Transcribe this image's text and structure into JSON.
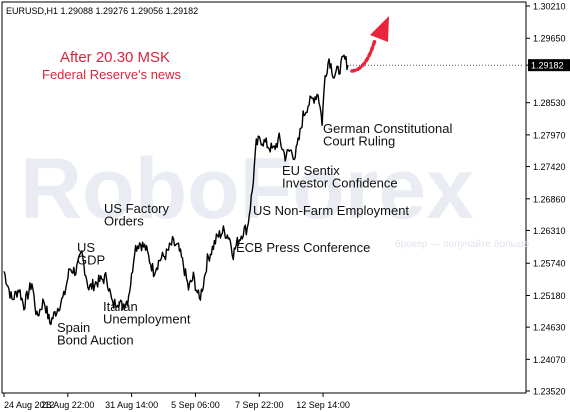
{
  "chart_data": {
    "type": "line",
    "header": {
      "symbol": "EURUSD,H1",
      "ohlc": "1.29088 1.29276 1.29056 1.29182"
    },
    "watermark": "RoboForex",
    "watermark_tag": "брокер — получайте больше",
    "y_ticks": [
      "1.30210",
      "1.29650",
      "1.29182",
      "1.28530",
      "1.27970",
      "1.27420",
      "1.26860",
      "1.26310",
      "1.25740",
      "1.25180",
      "1.24630",
      "1.24070",
      "1.23520"
    ],
    "y_tick_values": [
      1.3021,
      1.2965,
      1.29182,
      1.2853,
      1.2797,
      1.2742,
      1.2686,
      1.2631,
      1.2574,
      1.2518,
      1.2463,
      1.2407,
      1.2352
    ],
    "current_price": "1.29182",
    "ylim": [
      1.2352,
      1.3021
    ],
    "x_ticks": [
      "24 Aug 2012",
      "28 Aug 22:00",
      "31 Aug 14:00",
      "5 Sep 06:00",
      "7 Sep 22:00",
      "12 Sep 14:00"
    ],
    "x_tick_bars": [
      0,
      64,
      128,
      192,
      256,
      320
    ],
    "n_bars": 345,
    "grid": false,
    "price_key": [
      [
        0,
        1.256
      ],
      [
        8,
        1.251
      ],
      [
        15,
        1.253
      ],
      [
        20,
        1.25
      ],
      [
        28,
        1.254
      ],
      [
        33,
        1.248
      ],
      [
        40,
        1.251
      ],
      [
        46,
        1.247
      ],
      [
        49,
        1.248
      ],
      [
        55,
        1.25
      ],
      [
        60,
        1.2515
      ],
      [
        66,
        1.2565
      ],
      [
        72,
        1.256
      ],
      [
        78,
        1.259
      ],
      [
        85,
        1.253
      ],
      [
        92,
        1.254
      ],
      [
        98,
        1.2545
      ],
      [
        103,
        1.255
      ],
      [
        109,
        1.25
      ],
      [
        114,
        1.251
      ],
      [
        118,
        1.25
      ],
      [
        124,
        1.251
      ],
      [
        128,
        1.255
      ],
      [
        131,
        1.26
      ],
      [
        136,
        1.261
      ],
      [
        142,
        1.26
      ],
      [
        150,
        1.256
      ],
      [
        156,
        1.258
      ],
      [
        163,
        1.259
      ],
      [
        169,
        1.261
      ],
      [
        175,
        1.26
      ],
      [
        180,
        1.257
      ],
      [
        185,
        1.253
      ],
      [
        190,
        1.255
      ],
      [
        196,
        1.251
      ],
      [
        200,
        1.254
      ],
      [
        204,
        1.258
      ],
      [
        209,
        1.26
      ],
      [
        214,
        1.262
      ],
      [
        220,
        1.263
      ],
      [
        226,
        1.262
      ],
      [
        230,
        1.259
      ],
      [
        234,
        1.261
      ],
      [
        240,
        1.263
      ],
      [
        244,
        1.2635
      ],
      [
        249,
        1.27
      ],
      [
        253,
        1.278
      ],
      [
        257,
        1.279
      ],
      [
        264,
        1.278
      ],
      [
        270,
        1.277
      ],
      [
        276,
        1.279
      ],
      [
        282,
        1.276
      ],
      [
        287,
        1.277
      ],
      [
        292,
        1.276
      ],
      [
        296,
        1.279
      ],
      [
        300,
        1.283
      ],
      [
        305,
        1.285
      ],
      [
        310,
        1.286
      ],
      [
        315,
        1.287
      ],
      [
        319,
        1.282
      ],
      [
        322,
        1.29
      ],
      [
        326,
        1.293
      ],
      [
        331,
        1.29
      ],
      [
        336,
        1.291
      ],
      [
        341,
        1.293
      ],
      [
        345,
        1.29182
      ]
    ],
    "annotations": [
      {
        "lines": [
          "After 20.30 MSK"
        ],
        "color": "#d7263d",
        "size": 15
      },
      {
        "lines": [
          "Federal Reserve's news"
        ],
        "color": "#d7263d",
        "size": 13
      },
      {
        "lines": [
          "US",
          "GDP"
        ],
        "color": "#111111",
        "size": 13
      },
      {
        "lines": [
          "US Factory",
          "Orders"
        ],
        "color": "#111111",
        "size": 13
      },
      {
        "lines": [
          "Italian",
          "Unemployment"
        ],
        "color": "#111111",
        "size": 13
      },
      {
        "lines": [
          "Spain",
          "Bond Auction"
        ],
        "color": "#111111",
        "size": 13
      },
      {
        "lines": [
          "ECB Press Conference"
        ],
        "color": "#111111",
        "size": 13
      },
      {
        "lines": [
          "US Non-Farm Employment"
        ],
        "color": "#111111",
        "size": 13
      },
      {
        "lines": [
          "EU Sentix",
          "Investor Confidence"
        ],
        "color": "#111111",
        "size": 13
      },
      {
        "lines": [
          "German Constitutional",
          "Court Ruling"
        ],
        "color": "#111111",
        "size": 13
      }
    ],
    "arrow_color": "#e8253a"
  }
}
